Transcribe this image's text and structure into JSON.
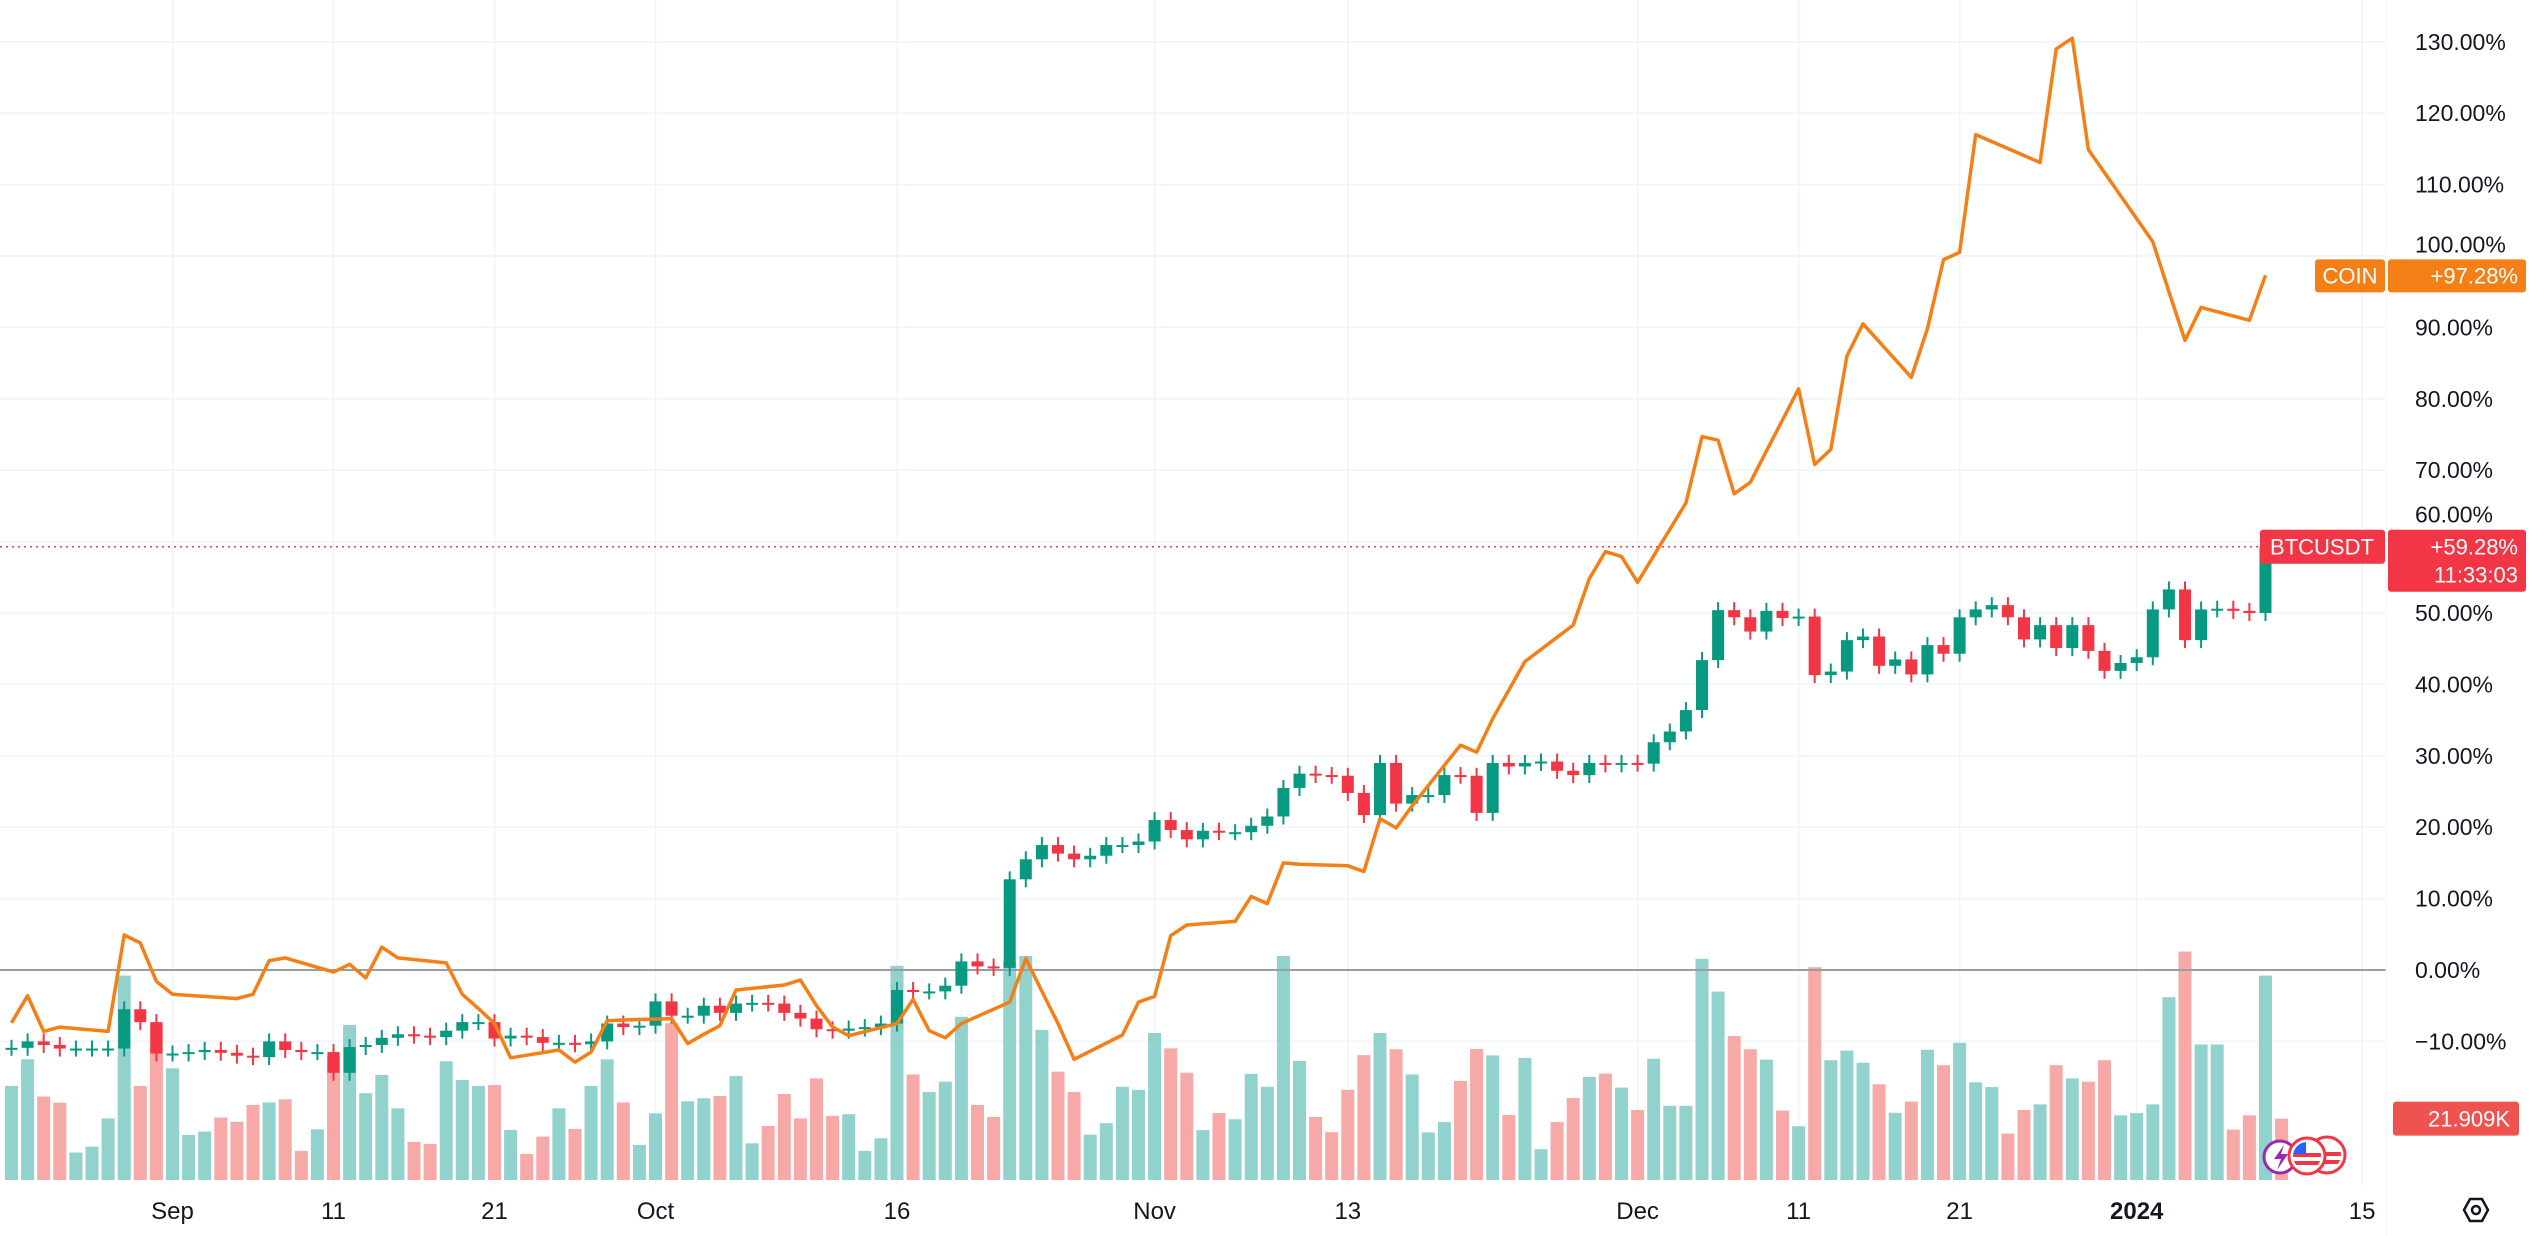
{
  "chart_data": {
    "type": "candlestick+line+bar",
    "grid": true,
    "colors": {
      "up": "#089981",
      "down": "#f23645",
      "volume_up": "#92d2cc",
      "volume_down": "#f7a9a7",
      "compare_line": "#f57f17",
      "grid": "#f0f3fa",
      "zero_line": "#9a9da6"
    },
    "y_axis": {
      "scale": "percent",
      "range": [
        -10,
        130
      ],
      "ticks": [
        "130.00%",
        "120.00%",
        "110.00%",
        "100.00%",
        "90.00%",
        "80.00%",
        "70.00%",
        "60.00%",
        "50.00%",
        "40.00%",
        "30.00%",
        "20.00%",
        "10.00%",
        "0.00%",
        "−10.00%"
      ],
      "tick_values": [
        130,
        120,
        110,
        100,
        90,
        80,
        70,
        60,
        50,
        40,
        30,
        20,
        10,
        0,
        -10
      ]
    },
    "x_axis": {
      "ticks": [
        {
          "label": "Sep",
          "date": "2023-09-01",
          "bold": false
        },
        {
          "label": "11",
          "date": "2023-09-11",
          "bold": false
        },
        {
          "label": "21",
          "date": "2023-09-21",
          "bold": false
        },
        {
          "label": "Oct",
          "date": "2023-10-01",
          "bold": false
        },
        {
          "label": "16",
          "date": "2023-10-16",
          "bold": false
        },
        {
          "label": "Nov",
          "date": "2023-11-01",
          "bold": false
        },
        {
          "label": "13",
          "date": "2023-11-13",
          "bold": false
        },
        {
          "label": "Dec",
          "date": "2023-12-01",
          "bold": false
        },
        {
          "label": "11",
          "date": "2023-12-11",
          "bold": false
        },
        {
          "label": "21",
          "date": "2023-12-21",
          "bold": false
        },
        {
          "label": "2024",
          "date": "2024-01-01",
          "bold": true
        },
        {
          "label": "15",
          "date": "2024-01-15",
          "bold": false
        }
      ]
    },
    "main_series": {
      "name": "BTCUSDT",
      "last_value_label": "+59.28%",
      "countdown": "11:33:03",
      "last_value": 59.28,
      "dates": [
        "2023-08-22",
        "2023-08-23",
        "2023-08-24",
        "2023-08-25",
        "2023-08-26",
        "2023-08-27",
        "2023-08-28",
        "2023-08-29",
        "2023-08-30",
        "2023-08-31",
        "2023-09-01",
        "2023-09-02",
        "2023-09-03",
        "2023-09-04",
        "2023-09-05",
        "2023-09-06",
        "2023-09-07",
        "2023-09-08",
        "2023-09-09",
        "2023-09-10",
        "2023-09-11",
        "2023-09-12",
        "2023-09-13",
        "2023-09-14",
        "2023-09-15",
        "2023-09-16",
        "2023-09-17",
        "2023-09-18",
        "2023-09-19",
        "2023-09-20",
        "2023-09-21",
        "2023-09-22",
        "2023-09-23",
        "2023-09-24",
        "2023-09-25",
        "2023-09-26",
        "2023-09-27",
        "2023-09-28",
        "2023-09-29",
        "2023-09-30",
        "2023-10-01",
        "2023-10-02",
        "2023-10-03",
        "2023-10-04",
        "2023-10-05",
        "2023-10-06",
        "2023-10-07",
        "2023-10-08",
        "2023-10-09",
        "2023-10-10",
        "2023-10-11",
        "2023-10-12",
        "2023-10-13",
        "2023-10-14",
        "2023-10-15",
        "2023-10-16",
        "2023-10-17",
        "2023-10-18",
        "2023-10-19",
        "2023-10-20",
        "2023-10-21",
        "2023-10-22",
        "2023-10-23",
        "2023-10-24",
        "2023-10-25",
        "2023-10-26",
        "2023-10-27",
        "2023-10-28",
        "2023-10-29",
        "2023-10-30",
        "2023-10-31",
        "2023-11-01",
        "2023-11-02",
        "2023-11-03",
        "2023-11-04",
        "2023-11-05",
        "2023-11-06",
        "2023-11-07",
        "2023-11-08",
        "2023-11-09",
        "2023-11-10",
        "2023-11-11",
        "2023-11-12",
        "2023-11-13",
        "2023-11-14",
        "2023-11-15",
        "2023-11-16",
        "2023-11-17",
        "2023-11-18",
        "2023-11-19",
        "2023-11-20",
        "2023-11-21",
        "2023-11-22",
        "2023-11-23",
        "2023-11-24",
        "2023-11-25",
        "2023-11-26",
        "2023-11-27",
        "2023-11-28",
        "2023-11-29",
        "2023-11-30",
        "2023-12-01",
        "2023-12-02",
        "2023-12-03",
        "2023-12-04",
        "2023-12-05",
        "2023-12-06",
        "2023-12-07",
        "2023-12-08",
        "2023-12-09",
        "2023-12-10",
        "2023-12-11",
        "2023-12-12",
        "2023-12-13",
        "2023-12-14",
        "2023-12-15",
        "2023-12-16",
        "2023-12-17",
        "2023-12-18",
        "2023-12-19",
        "2023-12-20",
        "2023-12-21",
        "2023-12-22",
        "2023-12-23",
        "2023-12-24",
        "2023-12-25",
        "2023-12-26",
        "2023-12-27",
        "2023-12-28",
        "2023-12-29",
        "2023-12-30",
        "2023-12-31",
        "2024-01-01",
        "2024-01-02",
        "2024-01-03",
        "2024-01-04",
        "2024-01-05",
        "2024-01-06",
        "2024-01-07",
        "2024-01-08",
        "2024-01-09",
        "2024-01-10"
      ],
      "close_pct": [
        -10.9,
        -10,
        -10.5,
        -11,
        -11,
        -11,
        -11,
        -5.5,
        -7.3,
        -11.7,
        -11.7,
        -11.5,
        -11.2,
        -11.6,
        -12,
        -12.2,
        -10,
        -11.2,
        -11.5,
        -11.5,
        -14.4,
        -10.8,
        -10.5,
        -9.5,
        -9,
        -9.2,
        -9.4,
        -8.5,
        -7.3,
        -7.3,
        -9.6,
        -9.2,
        -9.4,
        -10.2,
        -10.2,
        -10.4,
        -10,
        -7.5,
        -8,
        -7.8,
        -4.4,
        -6.4,
        -6.4,
        -5,
        -6,
        -4.7,
        -4.6,
        -4.7,
        -6,
        -6.8,
        -8.3,
        -8.5,
        -8.2,
        -8,
        -7.5,
        -2.8,
        -3,
        -3,
        -2.2,
        1.2,
        0.5,
        0.3,
        12.7,
        15.5,
        17.5,
        16.3,
        15.5,
        16,
        17.5,
        17.5,
        18,
        21,
        19.6,
        18.3,
        19.5,
        19.3,
        19.3,
        20.2,
        21.5,
        25.5,
        27.5,
        27.3,
        27.2,
        24.8,
        21.7,
        29,
        23.3,
        24.5,
        24.5,
        27.3,
        27.2,
        22,
        29,
        28.5,
        29,
        29.2,
        27.9,
        27.3,
        29,
        28.8,
        29.0,
        28.9,
        31.9,
        33.4,
        36.4,
        43.4,
        50.4,
        49.4,
        47.4,
        50.3,
        49.3,
        49.5,
        41.3,
        41.8,
        46.2,
        46.7,
        42.6,
        43.5,
        41.4,
        45.5,
        44.3,
        49.4,
        50.5,
        51.1,
        49.4,
        46.3,
        48.3,
        45.1,
        48.3,
        44.7,
        41.9,
        43.0,
        43.8,
        50.5,
        53.3,
        46.2,
        50.5,
        50.6,
        50.3,
        50.0,
        59.28,
        null
      ]
    },
    "volume": {
      "last_value_label": "21.909K",
      "unit": "K",
      "values": [
        33.6,
        43.1,
        29.8,
        27.6,
        9.8,
        11.9,
        22,
        73,
        33.6,
        56,
        39.9,
        16.1,
        17.3,
        22.3,
        20.8,
        26.8,
        27.7,
        28.8,
        10.4,
        18.1,
        44,
        55.4,
        31,
        37.5,
        25.6,
        13.6,
        12.9,
        42.4,
        35.7,
        33.6,
        33.9,
        17.9,
        9.3,
        15.5,
        25.6,
        18.2,
        33.6,
        43.1,
        27.7,
        12.5,
        23.8,
        56,
        28.1,
        29.2,
        30,
        37.1,
        13.1,
        19.3,
        30.7,
        22,
        36.3,
        22.9,
        23.5,
        10.4,
        14.9,
        76.5,
        37.7,
        31.4,
        35.1,
        58.3,
        26.8,
        22.5,
        78,
        80,
        53.6,
        38.7,
        31.4,
        16.2,
        20.3,
        33.3,
        32.2,
        52.5,
        47,
        38.3,
        17.8,
        23.9,
        21.7,
        37.9,
        33.3,
        80,
        42.5,
        22.5,
        17.1,
        32.2,
        44.6,
        52.5,
        46.7,
        37.7,
        17,
        20.7,
        35.4,
        46.8,
        44.5,
        23.2,
        43.6,
        11,
        20.7,
        29.3,
        36.8,
        38,
        33,
        25,
        43.3,
        26.5,
        26.5,
        79,
        67.3,
        51.4,
        46.7,
        43,
        24.8,
        19.2,
        76,
        42.8,
        46.2,
        41.9,
        34.2,
        24,
        28,
        46.5,
        41,
        49,
        34.9,
        33.2,
        16.6,
        25,
        27,
        41,
        36.3,
        35.1,
        42.8,
        23.1,
        23.9,
        27,
        65.3,
        81.6,
        48.4,
        48.4,
        18,
        23.1,
        73,
        21.909
      ]
    },
    "compare_series": {
      "name": "COIN",
      "last_value_label": "+97.28%",
      "dates": [
        "2023-08-22",
        "2023-08-23",
        "2023-08-24",
        "2023-08-25",
        "2023-08-28",
        "2023-08-29",
        "2023-08-30",
        "2023-08-31",
        "2023-09-01",
        "2023-09-05",
        "2023-09-06",
        "2023-09-07",
        "2023-09-08",
        "2023-09-11",
        "2023-09-12",
        "2023-09-13",
        "2023-09-14",
        "2023-09-15",
        "2023-09-18",
        "2023-09-19",
        "2023-09-20",
        "2023-09-21",
        "2023-09-22",
        "2023-09-25",
        "2023-09-26",
        "2023-09-27",
        "2023-09-28",
        "2023-09-29",
        "2023-10-02",
        "2023-10-03",
        "2023-10-04",
        "2023-10-05",
        "2023-10-06",
        "2023-10-09",
        "2023-10-10",
        "2023-10-11",
        "2023-10-12",
        "2023-10-13",
        "2023-10-16",
        "2023-10-17",
        "2023-10-18",
        "2023-10-19",
        "2023-10-20",
        "2023-10-23",
        "2023-10-24",
        "2023-10-25",
        "2023-10-26",
        "2023-10-27",
        "2023-10-30",
        "2023-10-31",
        "2023-11-01",
        "2023-11-02",
        "2023-11-03",
        "2023-11-06",
        "2023-11-07",
        "2023-11-08",
        "2023-11-09",
        "2023-11-10",
        "2023-11-13",
        "2023-11-14",
        "2023-11-15",
        "2023-11-16",
        "2023-11-17",
        "2023-11-20",
        "2023-11-21",
        "2023-11-22",
        "2023-11-24",
        "2023-11-27",
        "2023-11-28",
        "2023-11-29",
        "2023-11-30",
        "2023-12-01",
        "2023-12-04",
        "2023-12-05",
        "2023-12-06",
        "2023-12-07",
        "2023-12-08",
        "2023-12-11",
        "2023-12-12",
        "2023-12-13",
        "2023-12-14",
        "2023-12-15",
        "2023-12-18",
        "2023-12-19",
        "2023-12-20",
        "2023-12-21",
        "2023-12-22",
        "2023-12-26",
        "2023-12-27",
        "2023-12-28",
        "2023-12-29",
        "2024-01-02",
        "2024-01-03",
        "2024-01-04",
        "2024-01-05",
        "2024-01-08",
        "2024-01-09"
      ],
      "values_pct": [
        -7.4,
        -3.6,
        -8.6,
        -8.0,
        -8.6,
        4.9,
        3.8,
        -1.6,
        -3.4,
        -4.0,
        -3.4,
        1.3,
        1.7,
        -0.3,
        0.8,
        -1.1,
        3.2,
        1.7,
        1.0,
        -3.4,
        -5.4,
        -7.5,
        -12.3,
        -11.2,
        -12.9,
        -11.5,
        -7.1,
        -7.0,
        -6.8,
        -10.3,
        -9.0,
        -7.8,
        -2.8,
        -2.1,
        -1.4,
        -5,
        -8,
        -9.2,
        -7.5,
        -4.1,
        -8.5,
        -9.5,
        -7.5,
        -4.5,
        1.6,
        -3.0,
        -7.5,
        -12.5,
        -9.1,
        -4.5,
        -3.7,
        4.8,
        6.3,
        6.8,
        10.3,
        9.3,
        15.0,
        14.8,
        14.6,
        13.8,
        21.2,
        19.9,
        23,
        31.5,
        30.5,
        35.2,
        43.2,
        48.3,
        54.8,
        58.6,
        57.9,
        54.3,
        65.4,
        74.7,
        74.2,
        66.7,
        68.3,
        81.4,
        70.8,
        72.9,
        86.0,
        90.5,
        83.0,
        89.8,
        99.5,
        100.5,
        117.0,
        113.1,
        129.0,
        130.5,
        114.9,
        102,
        95,
        88.2,
        92.8,
        91.0,
        97.28
      ]
    }
  },
  "icons": {
    "events": [
      "lightning-icon",
      "us-flag-icon",
      "us-flag-icon"
    ],
    "settings": "settings-hexagon-icon"
  }
}
